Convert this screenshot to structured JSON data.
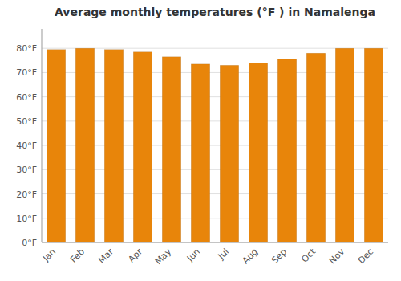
{
  "chart_data": {
    "type": "bar",
    "title": "Average monthly temperatures (°F ) in Namalenga",
    "categories": [
      "Jan",
      "Feb",
      "Mar",
      "Apr",
      "May",
      "Jun",
      "Jul",
      "Aug",
      "Sep",
      "Oct",
      "Nov",
      "Dec"
    ],
    "values": [
      79.5,
      80.0,
      79.5,
      78.5,
      76.5,
      73.5,
      73.0,
      74.0,
      75.5,
      78.0,
      80.0,
      80.0
    ],
    "color": "#E8850A",
    "ylim": [
      0,
      88
    ],
    "yticks": [
      {
        "value": 0,
        "label": "0°F"
      },
      {
        "value": 10,
        "label": "10°F"
      },
      {
        "value": 20,
        "label": "20°F"
      },
      {
        "value": 30,
        "label": "30°F"
      },
      {
        "value": 40,
        "label": "40°F"
      },
      {
        "value": 50,
        "label": "50°F"
      },
      {
        "value": 60,
        "label": "60°F"
      },
      {
        "value": 70,
        "label": "70°F"
      },
      {
        "value": 80,
        "label": "80°F"
      }
    ],
    "grid": true
  }
}
